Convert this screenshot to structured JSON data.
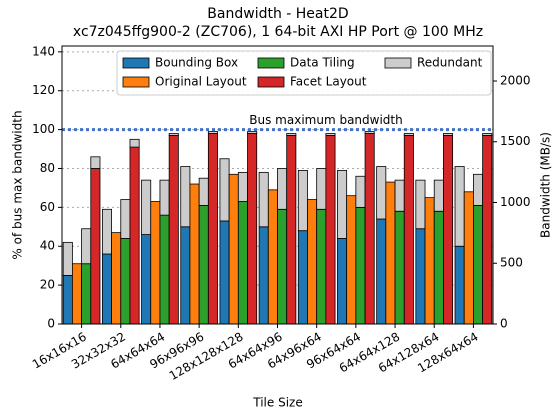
{
  "chart_data": {
    "type": "stacked-grouped-bar",
    "title": "Bandwidth - Heat2D",
    "subtitle": "xc7z045ffg900-2 (ZC706), 1 64-bit AXI HP Port @ 100 MHz",
    "x_label": "Tile Size",
    "y_label": "% of bus max bandwidth",
    "y2_label": "Bandwidth (MB/s)",
    "categories": [
      "16x16x16",
      "32x32x32",
      "64x64x64",
      "96x96x96",
      "128x128x128",
      "64x64x96",
      "64x96x64",
      "96x64x64",
      "64x64x128",
      "64x128x64",
      "128x64x64"
    ],
    "series": [
      {
        "name": "Bounding Box",
        "color": "#1f77b4",
        "values": [
          25,
          36,
          46,
          50,
          53,
          50,
          48,
          44,
          54,
          49,
          40
        ],
        "redundant_values": [
          17,
          23,
          28,
          31,
          32,
          28,
          31,
          35,
          27,
          25,
          41
        ]
      },
      {
        "name": "Original Layout",
        "color": "#ff7f0e",
        "values": [
          31,
          47,
          63,
          72,
          77,
          69,
          64,
          66,
          73,
          65,
          68
        ],
        "redundant_values": [
          0,
          0,
          0,
          0,
          0,
          0,
          0,
          0,
          0,
          0,
          0
        ]
      },
      {
        "name": "Data Tiling",
        "color": "#2ca02c",
        "values": [
          31,
          44,
          56,
          61,
          63,
          59,
          59,
          60,
          58,
          58,
          61
        ],
        "redundant_values": [
          18,
          20,
          18,
          14,
          15,
          21,
          21,
          16,
          16,
          16,
          16
        ]
      },
      {
        "name": "Facet Layout",
        "color": "#d62728",
        "values": [
          80,
          91,
          97,
          98,
          98,
          97,
          97,
          98,
          97,
          97,
          97
        ],
        "redundant_values": [
          6,
          4,
          1,
          1,
          1,
          1,
          1,
          1,
          1,
          1,
          1
        ]
      }
    ],
    "redundant": {
      "name": "Redundant",
      "color": "#cccccc"
    },
    "bus_line": {
      "label": "Bus maximum bandwidth",
      "value": 100,
      "color": "#4472c4"
    },
    "ylim": [
      0,
      143
    ],
    "yticks": [
      0,
      20,
      40,
      60,
      80,
      100,
      120,
      140
    ],
    "y2lim": [
      0,
      2288
    ],
    "y2ticks": [
      0,
      500,
      1000,
      1500,
      2000
    ],
    "grid": true
  }
}
